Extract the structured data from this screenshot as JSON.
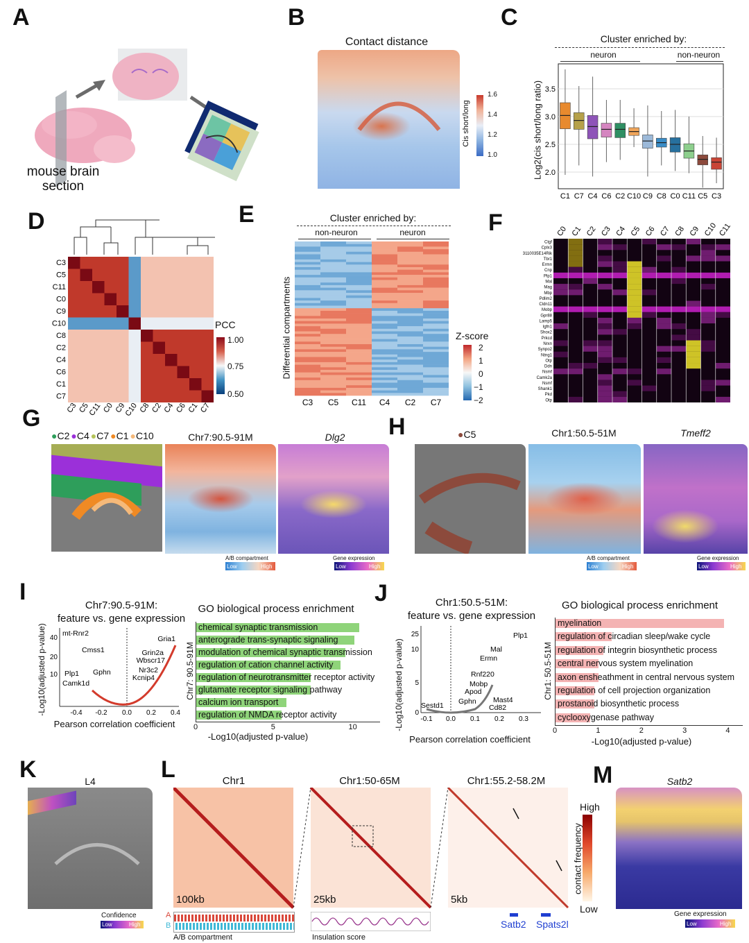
{
  "panels": {
    "A": {
      "label": "A",
      "caption_line1": "mouse brain",
      "caption_line2": "section"
    },
    "B": {
      "label": "B",
      "title": "Contact distance",
      "colorbar_title": "Cis short/long",
      "colorbar_ticks": [
        "1.6",
        "1.4",
        "1.2",
        "1.0"
      ]
    },
    "C": {
      "label": "C",
      "header": "Cluster enriched by:",
      "group_neuron": "neuron",
      "group_nonneuron": "non-neuron",
      "ylabel": "Log2(cis short/long ratio)"
    },
    "D": {
      "label": "D",
      "legend_title": "PCC",
      "legend_ticks": [
        "1.00",
        "0.75",
        "0.50"
      ],
      "rows": [
        "C3",
        "C5",
        "C11",
        "C0",
        "C9",
        "C10",
        "C8",
        "C2",
        "C4",
        "C6",
        "C1",
        "C7"
      ]
    },
    "E": {
      "label": "E",
      "header": "Cluster enriched by:",
      "group_nonneuron": "non-neuron",
      "group_neuron": "neuron",
      "ylabel": "Differential compartments",
      "columns": [
        "C3",
        "C5",
        "C11",
        "C4",
        "C2",
        "C7"
      ],
      "legend_title": "Z-score",
      "legend_ticks": [
        "2",
        "1",
        "0",
        "−1",
        "−2"
      ]
    },
    "F": {
      "label": "F",
      "columns": [
        "C0",
        "C1",
        "C2",
        "C3",
        "C4",
        "C5",
        "C6",
        "C7",
        "C8",
        "C9",
        "C10",
        "C11"
      ],
      "genes": [
        "Ctgf",
        "Cplx3",
        "3110035E14Rik",
        "Tbr1",
        "Ermn",
        "Cnp",
        "Plp1",
        "Mal",
        "Mag",
        "Mbp",
        "Pdlim2",
        "Cldn11",
        "Mobp",
        "Gpr88",
        "Lamp5",
        "Igfn1",
        "Shox2",
        "Prkcd",
        "Nrxn",
        "Synpo2",
        "Ntng1",
        "Otp",
        "Ddn",
        "Nsmf",
        "Camk2a",
        "Nsmf",
        "Shank1",
        "Pkd",
        "Otp"
      ]
    },
    "G": {
      "label": "G",
      "legend": [
        {
          "name": "C2",
          "color": "#2e9e5b"
        },
        {
          "name": "C4",
          "color": "#9b30d9"
        },
        {
          "name": "C7",
          "color": "#b5c45a"
        },
        {
          "name": "C1",
          "color": "#f08a24"
        },
        {
          "name": "C10",
          "color": "#f5b97a"
        }
      ],
      "map_title": "Chr7:90.5-91M",
      "gene_title": "Dlg2",
      "ab_label": "A/B compartment",
      "ab_low": "Low",
      "ab_high": "High",
      "ge_label": "Gene expression",
      "ge_low": "Low",
      "ge_high": "High"
    },
    "H": {
      "label": "H",
      "legend": [
        {
          "name": "C5",
          "color": "#8c4a3c"
        }
      ],
      "map_title": "Chr1:50.5-51M",
      "gene_title": "Tmeff2",
      "ab_label": "A/B compartment",
      "ab_low": "Low",
      "ab_high": "High",
      "ge_label": "Gene expression",
      "ge_low": "Low",
      "ge_high": "High"
    },
    "I": {
      "label": "I",
      "volcano_title1": "Chr7:90.5-91M:",
      "volcano_title2": "feature vs. gene expression",
      "volcano_xlabel": "Pearson correlation coefficient",
      "volcano_ylabel": "-Log10(adjusted p-value)",
      "volcano_genes": [
        "mt-Rnr2",
        "Cmss1",
        "Plp1",
        "Gphn",
        "Camk1d",
        "Gria1",
        "Grin2a",
        "Wbscr17",
        "Nr3c2",
        "Kcnip4"
      ],
      "go_title": "GO biological process enrichment",
      "go_ylabel": "Chr7: 90.5-91M",
      "go_xlabel": "-Log10(adjusted p-value)",
      "go_terms": [
        "chemical synaptic transmission",
        "anterograde trans-synaptic signaling",
        "modulation of chemical synaptic transmission",
        "regulation of cation channel activity",
        "regulation of neurotransmitter receptor activity",
        "glutamate receptor signaling pathway",
        "calcium ion transport",
        "regulation of NMDA receptor activity"
      ],
      "go_values": [
        10.5,
        10.2,
        9.6,
        9.3,
        7.4,
        7.4,
        5.8,
        5.5
      ],
      "go_xticks": [
        "0",
        "5",
        "10"
      ]
    },
    "J": {
      "label": "J",
      "volcano_title1": "Chr1:50.5-51M:",
      "volcano_title2": "feature vs. gene expression",
      "volcano_xlabel": "Pearson correlation coefficient",
      "volcano_ylabel": "-Log10(adjusted p-value)",
      "volcano_genes": [
        "Plp1",
        "Mal",
        "Ermn",
        "Rnf220",
        "Mobp",
        "Apod",
        "Gphn",
        "Mast4",
        "Cd82",
        "Sestd1"
      ],
      "go_title": "GO biological process enrichment",
      "go_ylabel": "Chr1: 50.5-51M",
      "go_xlabel": "-Log10(adjusted p-value)",
      "go_terms": [
        "myelination",
        "regulation of circadian sleep/wake cycle",
        "regulation of integrin biosynthetic process",
        "central nervous system myelination",
        "axon ensheathment in central nervous system",
        "regulation of cell projection organization",
        "prostanoid biosynthetic process",
        "cyclooxygenase pathway"
      ],
      "go_values": [
        3.9,
        1.3,
        1.1,
        1.0,
        1.0,
        0.9,
        0.9,
        0.8
      ],
      "go_xticks": [
        "0",
        "1",
        "2",
        "3",
        "4"
      ]
    },
    "K": {
      "label": "K",
      "title": "L4",
      "legend_label": "Confidence",
      "legend_low": "Low",
      "legend_high": "High"
    },
    "L": {
      "label": "L",
      "maps": [
        {
          "title": "Chr1",
          "resolution": "100kb"
        },
        {
          "title": "Chr1:50-65M",
          "resolution": "25kb"
        },
        {
          "title": "Chr1:55.2-58.2M",
          "resolution": "5kb"
        }
      ],
      "track1_label": "A/B compartment",
      "track1_a": "A",
      "track1_b": "B",
      "track2_label": "Insulation score",
      "genes": [
        "Satb2",
        "Spats2l"
      ],
      "colorbar_title": "contact frequency",
      "colorbar_high": "High",
      "colorbar_low": "Low"
    },
    "M": {
      "label": "M",
      "title": "Satb2",
      "legend_label": "Gene expression",
      "legend_low": "Low",
      "legend_high": "High"
    }
  },
  "chart_data": [
    {
      "type": "box",
      "panel": "C",
      "categories": [
        "C1",
        "C7",
        "C4",
        "C6",
        "C2",
        "C10",
        "C9",
        "C8",
        "C0",
        "C11",
        "C5",
        "C3"
      ],
      "medians": [
        3.02,
        2.93,
        2.82,
        2.77,
        2.77,
        2.73,
        2.56,
        2.53,
        2.5,
        2.38,
        2.23,
        2.18
      ],
      "q1": [
        2.78,
        2.77,
        2.6,
        2.63,
        2.62,
        2.66,
        2.43,
        2.45,
        2.36,
        2.25,
        2.13,
        2.05
      ],
      "q3": [
        3.25,
        3.07,
        3.02,
        2.88,
        2.88,
        2.8,
        2.67,
        2.61,
        2.62,
        2.51,
        2.31,
        2.26
      ],
      "whisker_low": [
        1.95,
        2.12,
        1.92,
        2.18,
        2.22,
        2.45,
        1.92,
        2.12,
        2.02,
        1.98,
        1.72,
        1.8
      ],
      "whisker_high": [
        3.85,
        3.55,
        3.72,
        3.3,
        3.3,
        3.15,
        3.2,
        3.1,
        3.12,
        3.0,
        2.65,
        2.62
      ],
      "colors": [
        "#e88a2e",
        "#b6a14a",
        "#8e54b8",
        "#d585c0",
        "#2f8f63",
        "#f0a55a",
        "#9cb9d9",
        "#3a8dc7",
        "#27709e",
        "#8dcf8d",
        "#8c4a3c",
        "#c94536"
      ],
      "ylim": [
        1.7,
        3.95
      ],
      "yticks": [
        "2.0",
        "2.5",
        "3.0",
        "3.5"
      ]
    }
  ]
}
